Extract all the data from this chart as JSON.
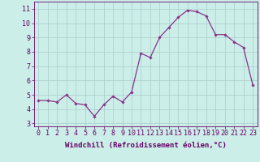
{
  "x": [
    0,
    1,
    2,
    3,
    4,
    5,
    6,
    7,
    8,
    9,
    10,
    11,
    12,
    13,
    14,
    15,
    16,
    17,
    18,
    19,
    20,
    21,
    22,
    23
  ],
  "y": [
    4.6,
    4.6,
    4.5,
    5.0,
    4.4,
    4.3,
    3.5,
    4.3,
    4.9,
    4.5,
    5.2,
    7.9,
    7.6,
    9.0,
    9.7,
    10.4,
    10.9,
    10.8,
    10.5,
    9.2,
    9.2,
    8.7,
    8.3,
    5.7
  ],
  "line_color": "#883388",
  "marker": "D",
  "marker_size": 1.8,
  "background_color": "#cceee8",
  "grid_color": "#aacccc",
  "xlabel": "Windchill (Refroidissement éolien,°C)",
  "xlabel_fontsize": 6.5,
  "xlim": [
    -0.5,
    23.5
  ],
  "ylim": [
    2.8,
    11.5
  ],
  "yticks": [
    3,
    4,
    5,
    6,
    7,
    8,
    9,
    10,
    11
  ],
  "xticks": [
    0,
    1,
    2,
    3,
    4,
    5,
    6,
    7,
    8,
    9,
    10,
    11,
    12,
    13,
    14,
    15,
    16,
    17,
    18,
    19,
    20,
    21,
    22,
    23
  ],
  "tick_fontsize": 6.0,
  "tick_color": "#660066",
  "axis_color": "#660066",
  "line_width": 0.9,
  "fig_width": 3.2,
  "fig_height": 2.0,
  "dpi": 100
}
